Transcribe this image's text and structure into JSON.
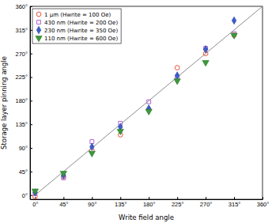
{
  "chart_data": {
    "type": "scatter",
    "x_label": "Write field angle",
    "y_label": "Storage layer pinning angle",
    "x": [
      0,
      45,
      90,
      135,
      180,
      225,
      270,
      315
    ],
    "xlim": [
      -8,
      360
    ],
    "ylim": [
      -8,
      360
    ],
    "xticks": [
      {
        "value": 0,
        "label": "0°"
      },
      {
        "value": 45,
        "label": "45°"
      },
      {
        "value": 90,
        "label": "90°"
      },
      {
        "value": 135,
        "label": "135°"
      },
      {
        "value": 180,
        "label": "180°"
      },
      {
        "value": 225,
        "label": "225°"
      },
      {
        "value": 270,
        "label": "270°"
      },
      {
        "value": 315,
        "label": "315°"
      },
      {
        "value": 360,
        "label": "360°"
      }
    ],
    "yticks": [
      {
        "value": 0,
        "label": "0°"
      },
      {
        "value": 45,
        "label": "45°"
      },
      {
        "value": 90,
        "label": "90°"
      },
      {
        "value": 135,
        "label": "135°"
      },
      {
        "value": 180,
        "label": "180°"
      },
      {
        "value": 225,
        "label": "225°"
      },
      {
        "value": 270,
        "label": "270°"
      },
      {
        "value": 315,
        "label": "315°"
      },
      {
        "value": 360,
        "label": "360°"
      }
    ],
    "grid": false,
    "legend": "top-left",
    "diagonal": {
      "x": [
        0,
        360
      ],
      "values": [
        0,
        360
      ],
      "color": "#8c8c8c"
    },
    "series": [
      {
        "name": "1 µm (Hwrite = 100 Oe)",
        "color": "#e8513a",
        "marker": "circle-open",
        "values": [
          -3,
          35,
          85,
          115,
          163,
          243,
          270,
          305
        ]
      },
      {
        "name": "430 nm (Hwrite = 200 Oe)",
        "color": "#b266d6",
        "marker": "square-open",
        "values": [
          3,
          33,
          102,
          137,
          178,
          225,
          280,
          308
        ]
      },
      {
        "name": "230 nm (Hwrite = 350 Oe)",
        "color": "#3a5fcd",
        "marker": "diamond",
        "values": [
          5,
          38,
          92,
          130,
          165,
          228,
          278,
          333
        ]
      },
      {
        "name": "110 nm (Hwrite = 600 Oe)",
        "color": "#3a9a3a",
        "marker": "triangle-down",
        "values": [
          8,
          42,
          80,
          122,
          160,
          218,
          253,
          305
        ]
      }
    ]
  }
}
